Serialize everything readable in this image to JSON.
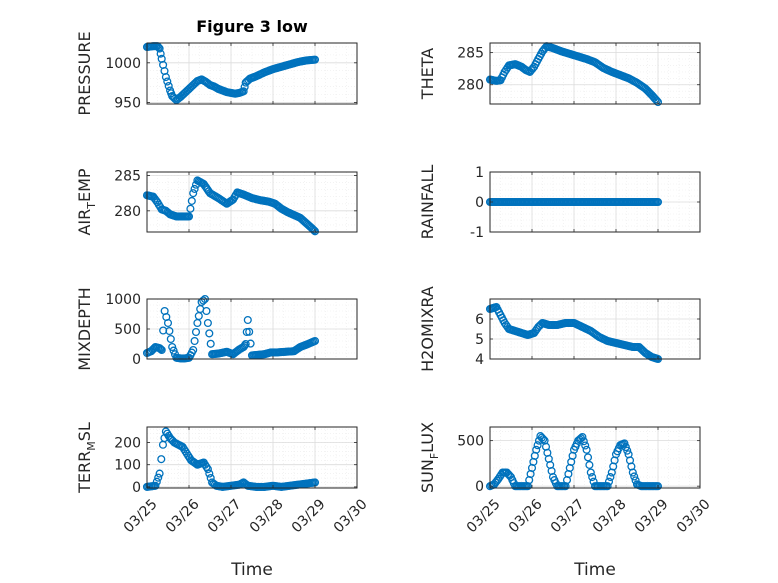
{
  "figure_title": "Figure 3 low",
  "colors": {
    "marker": "#0072bd",
    "axes": "#262626",
    "grid": "#dcdcdc"
  },
  "x_tick_labels": [
    "03/25",
    "03/26",
    "03/27",
    "03/28",
    "03/29",
    "03/30"
  ],
  "chart_data": [
    {
      "type": "scatter",
      "ylabel_parts": [
        "PRESSURE"
      ],
      "xlabel": "",
      "xlim": [
        25.0,
        30.0
      ],
      "ylim": [
        948,
        1025
      ],
      "yticks": [
        950,
        1000
      ],
      "grid": true,
      "series": [
        {
          "keys": [
            [
              25.0,
              1020
            ],
            [
              25.15,
              1021
            ],
            [
              25.25,
              1021
            ],
            [
              25.3,
              1018
            ],
            [
              25.35,
              1005
            ],
            [
              25.45,
              982
            ],
            [
              25.55,
              965
            ],
            [
              25.6,
              958
            ],
            [
              25.7,
              953
            ],
            [
              25.8,
              957
            ],
            [
              25.9,
              962
            ],
            [
              26.0,
              967
            ],
            [
              26.1,
              972
            ],
            [
              26.2,
              977
            ],
            [
              26.3,
              979
            ],
            [
              26.4,
              976
            ],
            [
              26.5,
              972
            ],
            [
              26.6,
              970
            ],
            [
              26.7,
              967
            ],
            [
              26.8,
              965
            ],
            [
              26.9,
              963
            ],
            [
              27.0,
              962
            ],
            [
              27.1,
              961
            ],
            [
              27.2,
              962
            ],
            [
              27.3,
              964
            ],
            [
              27.35,
              975
            ],
            [
              27.45,
              980
            ],
            [
              27.6,
              983
            ],
            [
              27.8,
              988
            ],
            [
              28.0,
              992
            ],
            [
              28.2,
              995
            ],
            [
              28.4,
              998
            ],
            [
              28.6,
              1001
            ],
            [
              28.8,
              1003
            ],
            [
              29.0,
              1004
            ]
          ]
        }
      ]
    },
    {
      "type": "scatter",
      "ylabel_parts": [
        "THETA"
      ],
      "xlabel": "",
      "xlim": [
        25.0,
        30.0
      ],
      "ylim": [
        277,
        286.5
      ],
      "yticks": [
        280,
        285
      ],
      "grid": true,
      "series": [
        {
          "keys": [
            [
              25.0,
              280.8
            ],
            [
              25.15,
              280.6
            ],
            [
              25.25,
              280.7
            ],
            [
              25.35,
              282.0
            ],
            [
              25.45,
              283.0
            ],
            [
              25.6,
              283.2
            ],
            [
              25.75,
              282.8
            ],
            [
              25.85,
              282.3
            ],
            [
              25.95,
              282.0
            ],
            [
              26.05,
              282.8
            ],
            [
              26.15,
              284.0
            ],
            [
              26.25,
              285.2
            ],
            [
              26.35,
              286.0
            ],
            [
              26.5,
              285.7
            ],
            [
              26.7,
              285.2
            ],
            [
              26.9,
              284.8
            ],
            [
              27.1,
              284.4
            ],
            [
              27.3,
              284.0
            ],
            [
              27.5,
              283.5
            ],
            [
              27.7,
              282.6
            ],
            [
              27.9,
              282.0
            ],
            [
              28.1,
              281.5
            ],
            [
              28.3,
              281.0
            ],
            [
              28.5,
              280.3
            ],
            [
              28.7,
              279.4
            ],
            [
              28.85,
              278.4
            ],
            [
              29.0,
              277.3
            ]
          ]
        }
      ]
    },
    {
      "type": "scatter",
      "ylabel_parts": [
        "AIR",
        "T",
        "EMP"
      ],
      "xlabel": "",
      "xlim": [
        25.0,
        30.0
      ],
      "ylim": [
        277,
        285.5
      ],
      "yticks": [
        280,
        285
      ],
      "grid": true,
      "series": [
        {
          "keys": [
            [
              25.0,
              282.2
            ],
            [
              25.15,
              282.0
            ],
            [
              25.25,
              281.2
            ],
            [
              25.35,
              280.2
            ],
            [
              25.45,
              280.0
            ],
            [
              25.55,
              279.5
            ],
            [
              25.7,
              279.2
            ],
            [
              25.85,
              279.2
            ],
            [
              26.0,
              279.2
            ],
            [
              26.1,
              282.5
            ],
            [
              26.2,
              284.3
            ],
            [
              26.35,
              283.8
            ],
            [
              26.5,
              282.5
            ],
            [
              26.7,
              281.8
            ],
            [
              26.9,
              281.0
            ],
            [
              27.05,
              281.6
            ],
            [
              27.15,
              282.6
            ],
            [
              27.3,
              282.3
            ],
            [
              27.5,
              281.8
            ],
            [
              27.7,
              281.5
            ],
            [
              27.9,
              281.3
            ],
            [
              28.05,
              281.0
            ],
            [
              28.2,
              280.3
            ],
            [
              28.35,
              279.8
            ],
            [
              28.5,
              279.4
            ],
            [
              28.65,
              279.0
            ],
            [
              28.8,
              278.2
            ],
            [
              28.95,
              277.4
            ],
            [
              29.0,
              277.1
            ]
          ]
        }
      ]
    },
    {
      "type": "scatter",
      "ylabel_parts": [
        "RAINFALL"
      ],
      "xlabel": "",
      "xlim": [
        25.0,
        30.0
      ],
      "ylim": [
        -1,
        1
      ],
      "yticks": [
        -1,
        0,
        1
      ],
      "grid": true,
      "series": [
        {
          "keys": [
            [
              25.0,
              0
            ],
            [
              29.0,
              0
            ]
          ]
        }
      ]
    },
    {
      "type": "scatter",
      "ylabel_parts": [
        "MIXDEPTH"
      ],
      "xlabel": "",
      "xlim": [
        25.0,
        30.0
      ],
      "ylim": [
        0,
        1000
      ],
      "yticks": [
        0,
        500,
        1000
      ],
      "grid": true,
      "series": [
        {
          "keys": [
            [
              25.0,
              100
            ],
            [
              25.1,
              130
            ],
            [
              25.2,
              200
            ],
            [
              25.3,
              180
            ],
            [
              25.35,
              150
            ],
            [
              25.42,
              800
            ],
            [
              25.5,
              600
            ],
            [
              25.6,
              200
            ],
            [
              25.7,
              20
            ],
            [
              25.8,
              10
            ],
            [
              25.9,
              10
            ],
            [
              26.0,
              20
            ],
            [
              26.1,
              150
            ],
            [
              26.2,
              600
            ],
            [
              26.3,
              950
            ],
            [
              26.38,
              1000
            ],
            [
              26.45,
              600
            ],
            [
              26.55,
              80
            ],
            [
              26.7,
              90
            ],
            [
              26.9,
              120
            ],
            [
              27.05,
              80
            ],
            [
              27.2,
              160
            ],
            [
              27.3,
              200
            ],
            [
              27.35,
              250
            ],
            [
              27.4,
              650
            ],
            [
              27.5,
              60
            ],
            [
              27.65,
              70
            ],
            [
              27.8,
              80
            ],
            [
              27.95,
              110
            ],
            [
              28.1,
              110
            ],
            [
              28.3,
              120
            ],
            [
              28.5,
              130
            ],
            [
              28.65,
              200
            ],
            [
              28.8,
              240
            ],
            [
              29.0,
              300
            ]
          ]
        }
      ]
    },
    {
      "type": "scatter",
      "ylabel_parts": [
        "H2OMIXRA"
      ],
      "xlabel": "",
      "xlim": [
        25.0,
        30.0
      ],
      "ylim": [
        4,
        7
      ],
      "yticks": [
        4,
        5,
        6
      ],
      "grid": true,
      "series": [
        {
          "keys": [
            [
              25.0,
              6.5
            ],
            [
              25.15,
              6.6
            ],
            [
              25.25,
              6.2
            ],
            [
              25.35,
              5.8
            ],
            [
              25.45,
              5.5
            ],
            [
              25.6,
              5.4
            ],
            [
              25.75,
              5.3
            ],
            [
              25.9,
              5.2
            ],
            [
              26.05,
              5.3
            ],
            [
              26.15,
              5.6
            ],
            [
              26.25,
              5.8
            ],
            [
              26.4,
              5.7
            ],
            [
              26.6,
              5.7
            ],
            [
              26.8,
              5.8
            ],
            [
              27.0,
              5.8
            ],
            [
              27.2,
              5.6
            ],
            [
              27.4,
              5.4
            ],
            [
              27.6,
              5.1
            ],
            [
              27.8,
              4.9
            ],
            [
              28.0,
              4.8
            ],
            [
              28.2,
              4.7
            ],
            [
              28.4,
              4.6
            ],
            [
              28.55,
              4.6
            ],
            [
              28.7,
              4.3
            ],
            [
              28.85,
              4.1
            ],
            [
              29.0,
              4.0
            ]
          ]
        }
      ]
    },
    {
      "type": "scatter",
      "ylabel_parts": [
        "TERR",
        "M",
        "SL"
      ],
      "xlabel": "Time",
      "xlim": [
        25.0,
        30.0
      ],
      "ylim": [
        -5,
        270
      ],
      "yticks": [
        0,
        100,
        200
      ],
      "grid": true,
      "series": [
        {
          "keys": [
            [
              25.0,
              0
            ],
            [
              25.2,
              5
            ],
            [
              25.3,
              60
            ],
            [
              25.38,
              190
            ],
            [
              25.45,
              250
            ],
            [
              25.55,
              220
            ],
            [
              25.65,
              200
            ],
            [
              25.85,
              180
            ],
            [
              25.95,
              150
            ],
            [
              26.05,
              120
            ],
            [
              26.2,
              100
            ],
            [
              26.35,
              110
            ],
            [
              26.45,
              80
            ],
            [
              26.55,
              20
            ],
            [
              26.65,
              5
            ],
            [
              26.8,
              0
            ],
            [
              27.0,
              5
            ],
            [
              27.2,
              10
            ],
            [
              27.3,
              20
            ],
            [
              27.4,
              5
            ],
            [
              27.6,
              0
            ],
            [
              27.8,
              0
            ],
            [
              28.0,
              5
            ],
            [
              28.2,
              0
            ],
            [
              28.4,
              5
            ],
            [
              28.6,
              10
            ],
            [
              28.8,
              15
            ],
            [
              29.0,
              20
            ]
          ]
        }
      ]
    },
    {
      "type": "scatter",
      "ylabel_parts": [
        "SUN",
        "F",
        "LUX"
      ],
      "xlabel": "Time",
      "xlim": [
        25.0,
        30.0
      ],
      "ylim": [
        -20,
        650
      ],
      "yticks": [
        0,
        500
      ],
      "grid": true,
      "series": [
        {
          "keys": [
            [
              25.0,
              0
            ],
            [
              25.1,
              20
            ],
            [
              25.2,
              80
            ],
            [
              25.3,
              150
            ],
            [
              25.4,
              150
            ],
            [
              25.5,
              100
            ],
            [
              25.6,
              0
            ],
            [
              25.8,
              0
            ],
            [
              25.9,
              0
            ],
            [
              26.0,
              200
            ],
            [
              26.1,
              400
            ],
            [
              26.2,
              550
            ],
            [
              26.3,
              500
            ],
            [
              26.4,
              300
            ],
            [
              26.5,
              100
            ],
            [
              26.6,
              0
            ],
            [
              26.8,
              0
            ],
            [
              26.9,
              200
            ],
            [
              27.0,
              400
            ],
            [
              27.1,
              500
            ],
            [
              27.2,
              540
            ],
            [
              27.3,
              400
            ],
            [
              27.4,
              150
            ],
            [
              27.5,
              0
            ],
            [
              27.7,
              0
            ],
            [
              27.8,
              0
            ],
            [
              27.9,
              150
            ],
            [
              28.0,
              350
            ],
            [
              28.1,
              450
            ],
            [
              28.2,
              470
            ],
            [
              28.3,
              350
            ],
            [
              28.4,
              150
            ],
            [
              28.5,
              20
            ],
            [
              28.6,
              0
            ],
            [
              28.8,
              0
            ],
            [
              29.0,
              0
            ]
          ]
        }
      ]
    }
  ]
}
